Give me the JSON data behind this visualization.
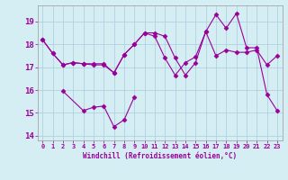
{
  "line1_x": [
    0,
    1,
    2,
    3,
    4,
    5,
    6,
    7,
    8,
    9,
    10,
    11,
    12,
    13,
    14,
    15,
    16,
    17,
    18,
    19,
    20,
    21,
    22,
    23
  ],
  "line1_y": [
    18.2,
    17.6,
    17.1,
    17.2,
    17.15,
    17.1,
    17.1,
    16.75,
    17.55,
    18.0,
    18.5,
    18.35,
    17.4,
    16.65,
    17.2,
    17.45,
    18.55,
    17.5,
    17.75,
    17.65,
    17.65,
    17.75,
    17.1,
    17.5
  ],
  "line2_x": [
    0,
    1,
    2,
    3,
    4,
    5,
    6,
    7,
    8,
    9,
    10,
    11,
    12,
    13,
    14,
    15,
    16,
    17,
    18,
    19,
    20,
    21,
    22,
    23
  ],
  "line2_y": [
    18.2,
    17.6,
    17.1,
    17.2,
    17.15,
    17.15,
    17.15,
    16.75,
    17.55,
    18.0,
    18.5,
    18.5,
    18.35,
    17.4,
    16.65,
    17.2,
    18.55,
    19.3,
    18.7,
    19.35,
    17.85,
    17.85,
    15.8,
    15.1
  ],
  "line3_x": [
    2,
    4,
    5,
    6,
    7,
    8,
    9
  ],
  "line3_y": [
    15.95,
    15.1,
    15.25,
    15.3,
    14.4,
    14.7,
    15.7
  ],
  "color": "#990099",
  "bg_color": "#d5eef3",
  "grid_color": "#aaccdd",
  "xlabel": "Windchill (Refroidissement éolien,°C)",
  "ylim": [
    13.8,
    19.7
  ],
  "xlim": [
    -0.5,
    23.5
  ],
  "yticks": [
    14,
    15,
    16,
    17,
    18,
    19
  ],
  "xticks": [
    0,
    1,
    2,
    3,
    4,
    5,
    6,
    7,
    8,
    9,
    10,
    11,
    12,
    13,
    14,
    15,
    16,
    17,
    18,
    19,
    20,
    21,
    22,
    23
  ]
}
